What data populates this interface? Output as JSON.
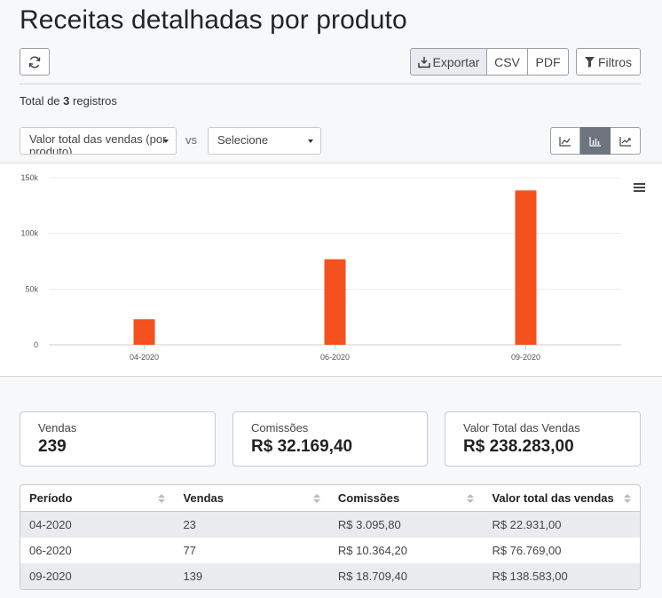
{
  "page": {
    "title": "Receitas detalhadas por produto"
  },
  "toolbar": {
    "export_label": "Exportar",
    "csv_label": "CSV",
    "pdf_label": "PDF",
    "filters_label": "Filtros"
  },
  "summary": {
    "total_prefix": "Total de",
    "total_count": "3",
    "total_suffix": "registros"
  },
  "controls": {
    "metric_select_value": "Valor total das vendas (por produto)",
    "compare_select_value": "Selecione",
    "vs_label": "vs"
  },
  "chart_data": {
    "type": "bar",
    "categories": [
      "04-2020",
      "06-2020",
      "09-2020"
    ],
    "values": [
      22931,
      76769,
      138583
    ],
    "ylim": [
      0,
      150000
    ],
    "yticks": [
      0,
      50000,
      100000,
      150000
    ],
    "ytick_labels": [
      "0",
      "50k",
      "100k",
      "150k"
    ],
    "grid": true,
    "bar_color": "#f4511e",
    "title": "",
    "xlabel": "",
    "ylabel": ""
  },
  "cards": [
    {
      "label": "Vendas",
      "value": "239"
    },
    {
      "label": "Comissões",
      "value": "R$ 32.169,40"
    },
    {
      "label": "Valor Total das Vendas",
      "value": "R$ 238.283,00"
    }
  ],
  "table": {
    "headers": [
      "Período",
      "Vendas",
      "Comissões",
      "Valor total das vendas"
    ],
    "rows": [
      [
        "04-2020",
        "23",
        "R$ 3.095,80",
        "R$ 22.931,00"
      ],
      [
        "06-2020",
        "77",
        "R$ 10.364,20",
        "R$ 76.769,00"
      ],
      [
        "09-2020",
        "139",
        "R$ 18.709,40",
        "R$ 138.583,00"
      ]
    ]
  },
  "icons": {
    "refresh": "refresh-icon",
    "export": "download-icon",
    "filter": "filter-icon",
    "chart_area": "area-chart-icon",
    "chart_bar": "bar-chart-icon",
    "chart_line": "line-chart-icon",
    "menu": "hamburger-menu-icon"
  }
}
